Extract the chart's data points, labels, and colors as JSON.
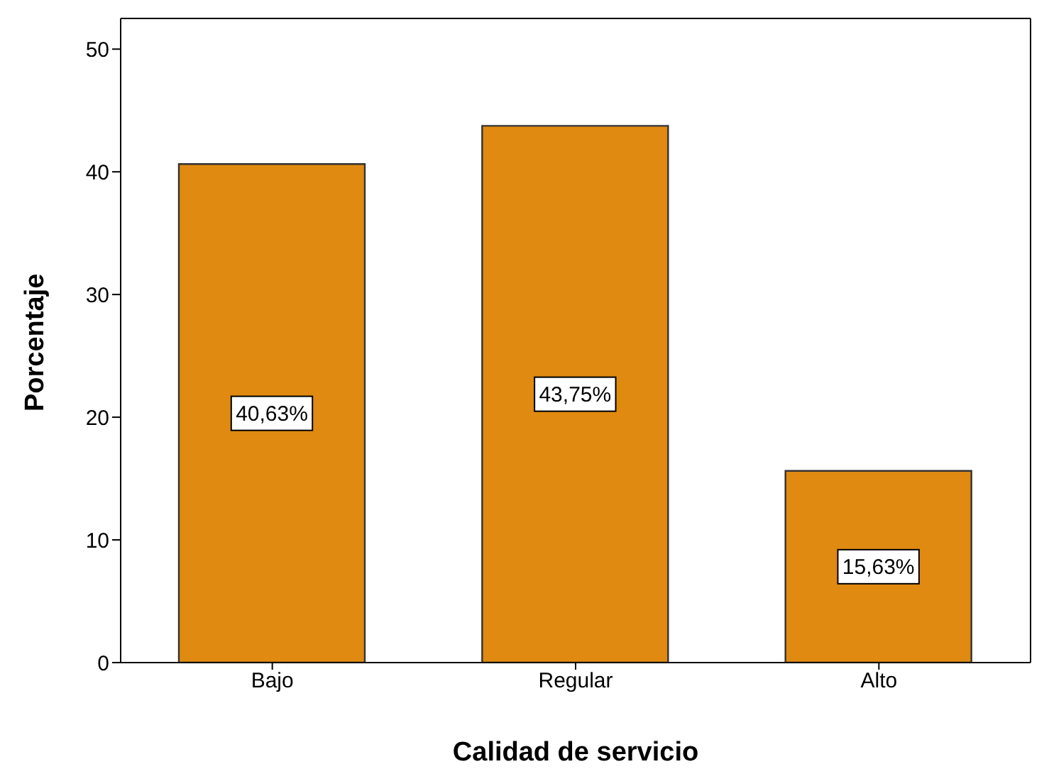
{
  "chart_data": {
    "type": "bar",
    "xlabel": "Calidad de servicio",
    "ylabel": "Porcentaje",
    "categories": [
      "Bajo",
      "Regular",
      "Alto"
    ],
    "values": [
      40.63,
      43.75,
      15.63
    ],
    "value_labels": [
      "40,63%",
      "43,75%",
      "15,63%"
    ],
    "color": "#e08a12",
    "ylim": [
      0,
      52.5
    ],
    "yticks": [
      0,
      10,
      20,
      30,
      40,
      50
    ],
    "grid": false,
    "legend": false
  }
}
